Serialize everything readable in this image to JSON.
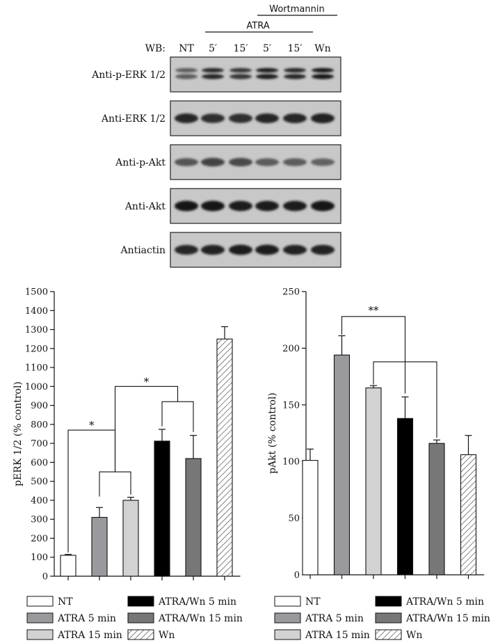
{
  "blot": {
    "wortmannin_label": "Wortmannin",
    "atra_label": "ATRA",
    "wb_label": "WB:",
    "lanes": [
      "NT",
      "5′",
      "15′",
      "5′",
      "15′",
      "Wn"
    ],
    "rows": [
      {
        "label": "Anti-p-ERK 1/2",
        "doublet": true,
        "intensity": [
          0.45,
          0.85,
          0.75,
          0.95,
          0.85,
          1.0
        ]
      },
      {
        "label": "Anti-ERK 1/2",
        "doublet": false,
        "intensity": [
          0.85,
          0.8,
          0.8,
          0.85,
          0.85,
          0.9
        ]
      },
      {
        "label": "Anti-p-Akt",
        "doublet": false,
        "intensity": [
          0.5,
          0.65,
          0.6,
          0.45,
          0.45,
          0.4
        ]
      },
      {
        "label": "Anti-Akt",
        "doublet": false,
        "intensity": [
          1.0,
          1.0,
          0.95,
          0.95,
          0.95,
          1.0
        ]
      },
      {
        "label": "Antiactin",
        "doublet": false,
        "intensity": [
          0.85,
          0.9,
          0.95,
          0.95,
          0.9,
          0.9
        ]
      }
    ]
  },
  "chart_data": [
    {
      "type": "bar",
      "ylabel": "pERK 1/2 (% control)",
      "ylim": [
        0,
        1500
      ],
      "yticks": [
        0,
        100,
        200,
        300,
        400,
        500,
        600,
        700,
        800,
        900,
        1000,
        1100,
        1200,
        1300,
        1400,
        1500
      ],
      "categories": [
        "NT",
        "ATRA 5 min",
        "ATRA 15 min",
        "ATRA/Wn 5 min",
        "ATRA/Wn 15 min",
        "Wn"
      ],
      "values": [
        110,
        310,
        400,
        712,
        620,
        1250
      ],
      "errors": [
        5,
        52,
        16,
        62,
        122,
        65
      ],
      "significance": [
        {
          "label": "*",
          "groups": [
            [
              0
            ],
            [
              1,
              2
            ]
          ]
        },
        {
          "label": "*",
          "groups": [
            [
              1,
              2
            ],
            [
              3,
              4
            ]
          ]
        }
      ]
    },
    {
      "type": "bar",
      "ylabel": "pAkt (% control)",
      "ylim": [
        0,
        250
      ],
      "yticks": [
        0,
        50,
        100,
        150,
        200,
        250
      ],
      "categories": [
        "NT",
        "ATRA 5 min",
        "ATRA 15 min",
        "ATRA/Wn 5 min",
        "ATRA/Wn 15 min",
        "Wn"
      ],
      "values": [
        101,
        194,
        165,
        138,
        116,
        106
      ],
      "errors": [
        10,
        17,
        2,
        19,
        3,
        17
      ],
      "significance": [
        {
          "label": "**",
          "groups": [
            [
              1
            ],
            [
              3
            ]
          ]
        },
        {
          "label": "",
          "groups": [
            [
              2
            ],
            [
              4
            ]
          ]
        }
      ]
    }
  ],
  "legend": {
    "items": [
      {
        "label": "NT",
        "style": "white"
      },
      {
        "label": "ATRA 5 min",
        "style": "gray"
      },
      {
        "label": "ATRA 15 min",
        "style": "lightgray"
      },
      {
        "label": "ATRA/Wn 5 min",
        "style": "black"
      },
      {
        "label": "ATRA/Wn 15 min",
        "style": "darkgray"
      },
      {
        "label": "Wn",
        "style": "hatch"
      }
    ]
  },
  "colors": {
    "white": "#ffffff",
    "gray": "#9a9a9e",
    "lightgray": "#d2d2d2",
    "black": "#000000",
    "darkgray": "#777777",
    "hatch": "#555555"
  }
}
